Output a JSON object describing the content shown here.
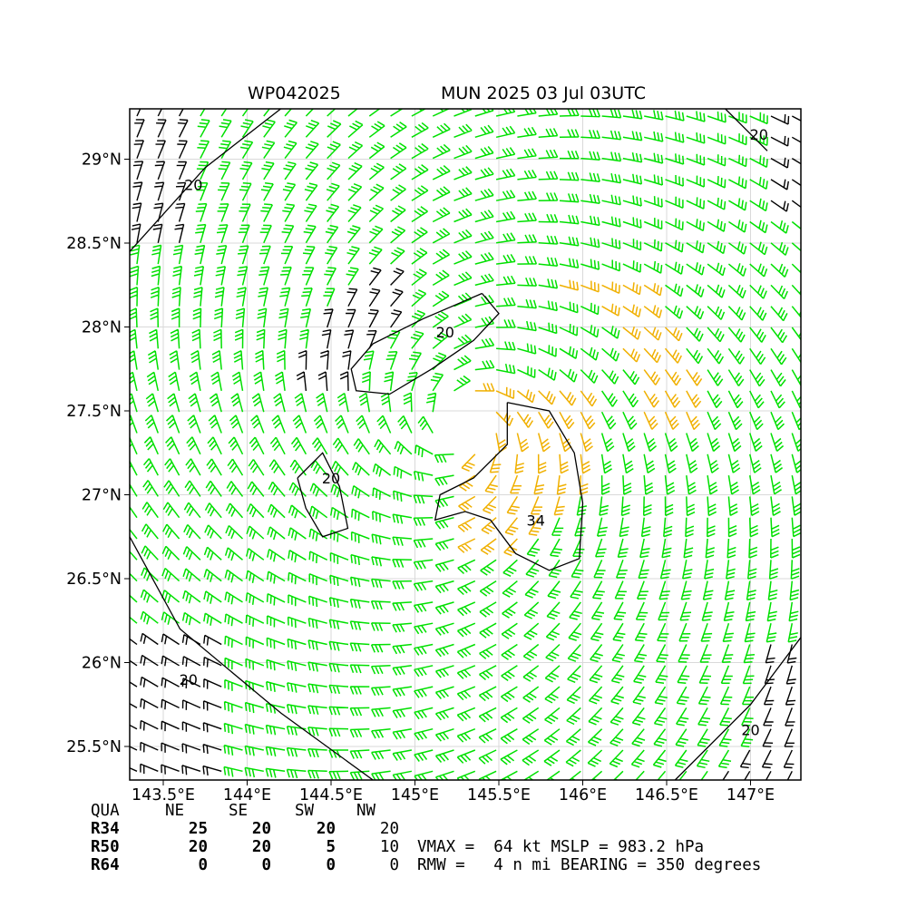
{
  "title_left": "WP042025",
  "title_right": "MUN 2025 03 Jul 03UTC",
  "colors": {
    "barb_normal": "#00e000",
    "barb_high": "#f0b000",
    "barb_low": "#000000",
    "contour": "#000000",
    "grid": "#d9d9d9"
  },
  "chart_data": {
    "type": "wind-barb-map",
    "xlabel": "",
    "ylabel": "",
    "xlim": [
      143.3,
      147.3
    ],
    "ylim": [
      25.3,
      29.3
    ],
    "x_ticks": [
      143.5,
      144,
      144.5,
      145,
      145.5,
      146,
      146.5,
      147
    ],
    "y_ticks": [
      25.5,
      26,
      26.5,
      27,
      27.5,
      28,
      28.5,
      29
    ],
    "x_tick_labels": [
      "143.5°E",
      "144°E",
      "144.5°E",
      "145°E",
      "145.5°E",
      "146°E",
      "146.5°E",
      "147°E"
    ],
    "y_tick_labels": [
      "25.5°N",
      "26°N",
      "26.5°N",
      "27°N",
      "27.5°N",
      "28°N",
      "28.5°N",
      "29°N"
    ],
    "grid": true,
    "storm_center": [
      145.28,
      27.4
    ],
    "contour_labels": [
      {
        "text": "20",
        "lon": 143.68,
        "lat": 28.85
      },
      {
        "text": "20",
        "lon": 145.18,
        "lat": 27.97
      },
      {
        "text": "20",
        "lon": 144.5,
        "lat": 27.1
      },
      {
        "text": "20",
        "lon": 143.65,
        "lat": 25.9
      },
      {
        "text": "20",
        "lon": 147.05,
        "lat": 29.15
      },
      {
        "text": "20",
        "lon": 147.0,
        "lat": 25.6
      },
      {
        "text": "34",
        "lon": 145.72,
        "lat": 26.85
      }
    ],
    "contours": [
      {
        "level": 20,
        "points": [
          [
            144.2,
            29.3
          ],
          [
            143.75,
            28.95
          ],
          [
            143.3,
            28.45
          ]
        ]
      },
      {
        "level": 20,
        "points": [
          [
            143.3,
            26.75
          ],
          [
            143.6,
            26.2
          ],
          [
            144.2,
            25.7
          ],
          [
            144.75,
            25.3
          ]
        ]
      },
      {
        "level": 20,
        "points": [
          [
            146.55,
            25.3
          ],
          [
            147.0,
            25.75
          ],
          [
            147.3,
            26.15
          ]
        ]
      },
      {
        "level": 20,
        "points": [
          [
            146.85,
            29.3
          ],
          [
            147.1,
            29.05
          ]
        ]
      },
      {
        "level": 20,
        "points": [
          [
            145.4,
            28.2
          ],
          [
            145.05,
            28.05
          ],
          [
            144.75,
            27.9
          ],
          [
            144.62,
            27.75
          ],
          [
            144.65,
            27.62
          ],
          [
            144.85,
            27.6
          ],
          [
            145.1,
            27.75
          ],
          [
            145.35,
            27.92
          ],
          [
            145.5,
            28.08
          ],
          [
            145.4,
            28.2
          ]
        ]
      },
      {
        "level": 20,
        "points": [
          [
            144.3,
            27.1
          ],
          [
            144.45,
            27.25
          ],
          [
            144.55,
            27.05
          ],
          [
            144.6,
            26.8
          ],
          [
            144.45,
            26.75
          ],
          [
            144.35,
            26.92
          ],
          [
            144.3,
            27.1
          ]
        ]
      },
      {
        "level": 34,
        "points": [
          [
            145.55,
            27.55
          ],
          [
            145.8,
            27.5
          ],
          [
            145.95,
            27.25
          ],
          [
            146.0,
            26.95
          ],
          [
            145.98,
            26.62
          ],
          [
            145.8,
            26.55
          ],
          [
            145.6,
            26.65
          ],
          [
            145.45,
            26.85
          ],
          [
            145.3,
            26.9
          ],
          [
            145.12,
            26.85
          ],
          [
            145.15,
            27.0
          ],
          [
            145.35,
            27.1
          ],
          [
            145.55,
            27.3
          ],
          [
            145.55,
            27.55
          ]
        ]
      }
    ],
    "wind_field": {
      "model": "cyclonic vortex barbs",
      "vmax_kt": 64,
      "rmw_nmi": 4,
      "bearing_deg": 350
    },
    "table": {
      "headers": [
        "QUA",
        "NE",
        "SE",
        "SW",
        "NW"
      ],
      "rows": [
        {
          "label": "R34",
          "values": [
            "25",
            "20",
            "20",
            "20"
          ]
        },
        {
          "label": "R50",
          "values": [
            "20",
            "20",
            "5",
            "10"
          ]
        },
        {
          "label": "R64",
          "values": [
            "0",
            "0",
            "0",
            "0"
          ]
        }
      ]
    },
    "summary": {
      "line1": "VMAX =  64 kt MSLP = 983.2 hPa",
      "line2": "RMW =   4 n mi BEARING = 350 degrees"
    }
  }
}
